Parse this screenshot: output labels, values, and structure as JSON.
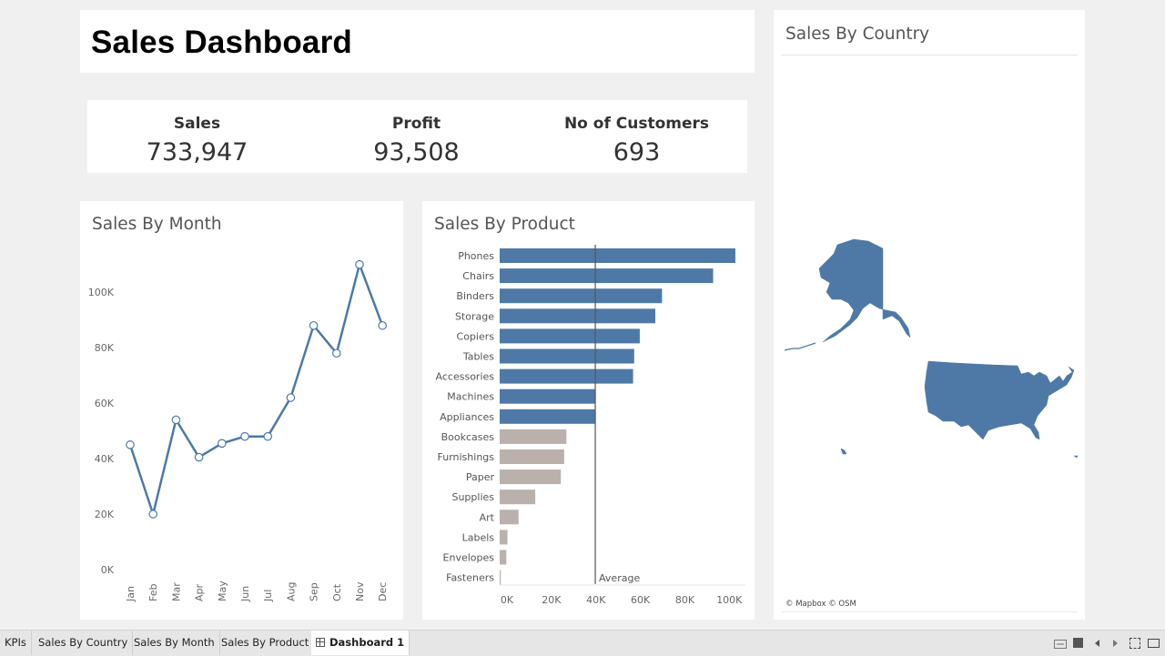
{
  "header": {
    "title": "Sales Dashboard"
  },
  "kpis": [
    {
      "label": "Sales",
      "value": "733,947"
    },
    {
      "label": "Profit",
      "value": "93,508"
    },
    {
      "label": "No of Customers",
      "value": "693"
    }
  ],
  "sales_by_month": {
    "title": "Sales By Month"
  },
  "sales_by_product": {
    "title": "Sales By Product"
  },
  "sales_by_country": {
    "title": "Sales By Country",
    "attribution": "© Mapbox © OSM",
    "fill_color": "#4e79a7"
  },
  "tabs": [
    {
      "label": "KPIs",
      "active": false
    },
    {
      "label": "Sales By Country",
      "active": false
    },
    {
      "label": "Sales By Month",
      "active": false
    },
    {
      "label": "Sales By Product",
      "active": false
    },
    {
      "label": "Dashboard 1",
      "active": true,
      "icon": "dashboard-grid-icon"
    }
  ],
  "status_controls": [
    "filmstrip-icon",
    "square-icon",
    "previous-icon",
    "next-icon",
    "fullscreen-icon",
    "presentation-icon"
  ],
  "colors": {
    "line": "#4e79a7",
    "bar_above": "#4e79a7",
    "bar_below": "#bab0ac",
    "reference": "#555555"
  },
  "chart_data": [
    {
      "type": "line",
      "title": "Sales By Month",
      "categories": [
        "Jan",
        "Feb",
        "Mar",
        "Apr",
        "May",
        "Jun",
        "Jul",
        "Aug",
        "Sep",
        "Oct",
        "Nov",
        "Dec"
      ],
      "values": [
        45000,
        20000,
        54000,
        40500,
        45500,
        48000,
        48000,
        62000,
        88000,
        78000,
        110000,
        88000
      ],
      "y_ticks": [
        "0K",
        "20K",
        "40K",
        "60K",
        "80K",
        "100K"
      ],
      "ylim": [
        0,
        110000
      ],
      "grid": false,
      "markers": true
    },
    {
      "type": "bar",
      "orientation": "horizontal",
      "title": "Sales By Product",
      "categories": [
        "Phones",
        "Chairs",
        "Binders",
        "Storage",
        "Copiers",
        "Tables",
        "Accessories",
        "Machines",
        "Appliances",
        "Bookcases",
        "Furnishings",
        "Paper",
        "Supplies",
        "Art",
        "Labels",
        "Envelopes",
        "Fasteners"
      ],
      "values": [
        106000,
        96000,
        73000,
        70000,
        63000,
        60500,
        60000,
        43000,
        43000,
        30000,
        29000,
        27500,
        16000,
        8500,
        3500,
        3000,
        500
      ],
      "reference_line": {
        "label": "Average",
        "value": 43000
      },
      "x_ticks": [
        "0K",
        "20K",
        "40K",
        "60K",
        "80K",
        "100K"
      ],
      "xlim": [
        0,
        106000
      ],
      "grid": false
    },
    {
      "type": "map",
      "title": "Sales By Country",
      "regions": [
        "United States"
      ],
      "attribution": "© Mapbox © OSM"
    }
  ]
}
